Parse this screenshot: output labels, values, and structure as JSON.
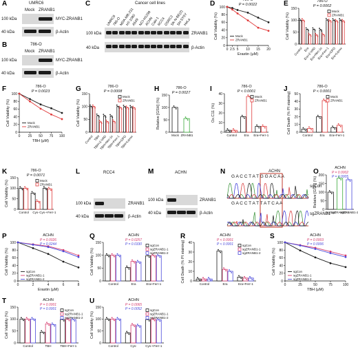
{
  "panels": [
    "A",
    "B",
    "C",
    "D",
    "E",
    "F",
    "G",
    "H",
    "I",
    "J",
    "K",
    "L",
    "M",
    "N",
    "O",
    "P",
    "Q",
    "R",
    "S",
    "T",
    "U"
  ],
  "colors": {
    "mock": "#1a1a1a",
    "zranb1": "#e03a3a",
    "sgcon": "#1a1a1a",
    "sg1": "#d63b6d",
    "sg2": "#4a4adb",
    "green": "#3aaa3a",
    "pink": "#e04d9f",
    "yellow": "#e2e23a"
  },
  "blots": {
    "A": {
      "title": "UMRC6",
      "lanes": [
        "Mock",
        "ZRANB1"
      ],
      "kda_top": "100 kDa",
      "kda_bot": "40 kDa",
      "label_top": "MYC-ZRANB1",
      "label_bot": "β-Actin"
    },
    "B": {
      "title": "786-O",
      "lanes": [
        "Mock",
        "ZRANB1"
      ],
      "kda_top": "100 kDa",
      "kda_bot": "40 kDa",
      "label_top": "MYC-ZRANB1",
      "label_bot": "β-Actin"
    },
    "C": {
      "title": "Cancer cell lines",
      "lanes": [
        "UMRC6",
        "786-O",
        "MDA-MB-231",
        "HT-1080",
        "A549",
        "NCI-H1299",
        "ACHN",
        "Caki-1",
        "RCC4",
        "OSRC2",
        "SK-N-BE(2)",
        "SH-SY5Y",
        "HeLa"
      ],
      "kda_top": "100 kDa",
      "kda_bot": "40 kDa",
      "label_top": "ZRANB1",
      "label_bot": "β-Actin"
    },
    "L": {
      "title": "RCC4",
      "lanes": [
        "sgCon",
        "sgZRANB1-1",
        "sgZRANB1-2"
      ],
      "kda_top": "100 kDa",
      "kda_bot": "40 kDa",
      "label_top": "ZRANB1",
      "label_bot": "β-Actin"
    },
    "M": {
      "title": "ACHN",
      "lanes": [
        "sgCon",
        "sgZRANB1-1",
        "sgZRANB1-2"
      ],
      "kda_top": "100 kDa",
      "kda_bot": "40 kDa",
      "label_top": "ZRANB1",
      "label_bot": "β-Actin"
    }
  },
  "N": {
    "title": "ACHN",
    "seq_top": "G A C C T A T G G A C A A",
    "seq_bot": "G A C C T A T T A T C A A",
    "label_top": "sgCon",
    "label_bot": "sgZRANB1"
  },
  "chart_data": [
    {
      "panel": "D",
      "type": "line",
      "title": "786-O",
      "pvalue": "P = 0.0022",
      "xlabel": "Erastin (μM)",
      "ylabel": "Cell Viability (%)",
      "x": [
        0,
        2.5,
        5,
        10,
        15,
        20
      ],
      "xticks": [
        "0",
        "2.5",
        "5",
        "10",
        "15",
        "20"
      ],
      "ylim": [
        0,
        100
      ],
      "yticks": [
        "0",
        "20",
        "40",
        "60",
        "80",
        "100"
      ],
      "series": [
        {
          "name": "Mock",
          "values": [
            100,
            97,
            92,
            85,
            72,
            60
          ]
        },
        {
          "name": "ZRANB1",
          "values": [
            100,
            93,
            83,
            65,
            46,
            38
          ]
        }
      ]
    },
    {
      "panel": "E",
      "type": "bar",
      "title": "786-O",
      "pvalue": "P = 0.0002",
      "ylabel": "Cell Viability (%)",
      "categories": [
        "Control",
        "Era",
        "Era+Z-VAD",
        "Era+Nec-1s",
        "Era+Ferr-1",
        "Era+DFO",
        "Era+Liprox"
      ],
      "ylim": [
        0,
        150
      ],
      "yticks": [
        "0",
        "50",
        "100",
        "150"
      ],
      "series": [
        {
          "name": "Mock",
          "values": [
            100,
            62,
            62,
            60,
            101,
            100,
            100
          ]
        },
        {
          "name": "ZRANB1",
          "values": [
            100,
            39,
            38,
            40,
            98,
            97,
            97
          ]
        }
      ]
    },
    {
      "panel": "F",
      "type": "line",
      "title": "786-O",
      "pvalue": "P = 0.0023",
      "xlabel": "TBH (μM)",
      "ylabel": "Cell Viability (%)",
      "x": [
        0,
        25,
        50,
        75,
        100
      ],
      "xticks": [
        "0",
        "25",
        "50",
        "75",
        "100"
      ],
      "ylim": [
        0,
        100
      ],
      "yticks": [
        "0",
        "20",
        "40",
        "60",
        "80",
        "100"
      ],
      "series": [
        {
          "name": "Mock",
          "values": [
            100,
            86,
            72,
            62,
            50
          ]
        },
        {
          "name": "ZRANB1",
          "values": [
            100,
            80,
            61,
            46,
            34
          ]
        }
      ]
    },
    {
      "panel": "G",
      "type": "bar",
      "title": "786-O",
      "pvalue": "P = 0.0008",
      "ylabel": "Cell Viability (%)",
      "categories": [
        "Control",
        "TBH",
        "TBH+Z-VAD",
        "TBH+Nec-1s",
        "TBH+Ferr-1",
        "TBH+DFO",
        "TBH+Liprox"
      ],
      "ylim": [
        0,
        150
      ],
      "yticks": [
        "0",
        "50",
        "100",
        "150"
      ],
      "series": [
        {
          "name": "Mock",
          "values": [
            100,
            65,
            64,
            63,
            100,
            99,
            98
          ]
        },
        {
          "name": "ZRANB1",
          "values": [
            100,
            40,
            41,
            42,
            95,
            96,
            95
          ]
        }
      ]
    },
    {
      "panel": "H",
      "type": "bar",
      "title": "786-O",
      "pvalue": "P = 0.0027",
      "ylabel": "Relative [GSH] (%)",
      "categories": [
        "Mock",
        "ZRANB1"
      ],
      "ylim": [
        0,
        150
      ],
      "yticks": [
        "0",
        "50",
        "100",
        "150"
      ],
      "values": [
        100,
        55
      ]
    },
    {
      "panel": "I",
      "type": "bar",
      "title": "786-O",
      "pvalue": "P < 0.0001",
      "ylabel": "Ox.C11 (%)",
      "categories": [
        "Control",
        "Era",
        "Era+Ferr-1"
      ],
      "ylim": [
        0,
        40
      ],
      "yticks": [
        "0",
        "10",
        "20",
        "30",
        "40"
      ],
      "series": [
        {
          "name": "Mock",
          "values": [
            2,
            16,
            6
          ]
        },
        {
          "name": "ZRANB1",
          "values": [
            2,
            37,
            6
          ]
        }
      ]
    },
    {
      "panel": "J",
      "type": "bar",
      "title": "786-O",
      "pvalue": "P < 0.0001",
      "ylabel": "Cell Death (% PI staining)",
      "categories": [
        "Control",
        "Era",
        "Era+Ferr-1"
      ],
      "ylim": [
        0,
        50
      ],
      "yticks": [
        "0",
        "10",
        "20",
        "30",
        "40",
        "50"
      ],
      "series": [
        {
          "name": "Mock",
          "values": [
            4,
            20,
            6
          ]
        },
        {
          "name": "ZRANB1",
          "values": [
            5,
            41,
            9
          ]
        }
      ]
    },
    {
      "panel": "K",
      "type": "bar",
      "title": "786-O",
      "pvalue": "P = 0.0071",
      "ylabel": "Cell Viability (%)",
      "categories": [
        "Control",
        "Cys-",
        "Cys-+Ferr-1"
      ],
      "ylim": [
        0,
        150
      ],
      "yticks": [
        "0",
        "50",
        "100",
        "150"
      ],
      "series": [
        {
          "name": "Mock",
          "values": [
            100,
            77,
            100
          ]
        },
        {
          "name": "ZRANB1",
          "values": [
            100,
            38,
            97
          ]
        }
      ]
    },
    {
      "panel": "O",
      "type": "bar",
      "title": "ACHN",
      "pvalues": [
        "P = 0.0002",
        "P = 0.0005"
      ],
      "ylabel": "Relative [GSH] (%)",
      "categories": [
        "sgCon",
        "sgZRANB1-1",
        "sgZRANB1-2"
      ],
      "ylim": [
        0,
        200
      ],
      "yticks": [
        "0",
        "50",
        "100",
        "150",
        "200"
      ],
      "values": [
        100,
        180,
        172
      ]
    },
    {
      "panel": "P",
      "type": "line",
      "title": "ACHN",
      "pvalues": [
        "P = 0.0026",
        "P = 0.0244"
      ],
      "xlabel": "Erastin (μM)",
      "ylabel": "Cell Viability (%)",
      "x": [
        0,
        2,
        4,
        6,
        8
      ],
      "xticks": [
        "0",
        "2",
        "4",
        "6",
        "8"
      ],
      "ylim": [
        0,
        100
      ],
      "yticks": [
        "0",
        "20",
        "40",
        "60",
        "80",
        "100"
      ],
      "series": [
        {
          "name": "sgCon",
          "values": [
            100,
            85,
            70,
            50,
            35
          ]
        },
        {
          "name": "sgZRANB1-1",
          "values": [
            100,
            95,
            90,
            80,
            66
          ]
        },
        {
          "name": "sgZRANB1-2",
          "values": [
            100,
            94,
            88,
            77,
            62
          ]
        }
      ]
    },
    {
      "panel": "Q",
      "type": "bar",
      "title": "ACHN",
      "pvalues": [
        "P = 0.0257",
        "P = 0.0330"
      ],
      "ylabel": "Cell Viability (%)",
      "categories": [
        "Control",
        "Era",
        "Era+Ferr-1"
      ],
      "ylim": [
        0,
        150
      ],
      "yticks": [
        "0",
        "50",
        "100",
        "150"
      ],
      "series": [
        {
          "name": "sgCon",
          "values": [
            100,
            52,
            98
          ]
        },
        {
          "name": "sgZRANB1-1",
          "values": [
            100,
            76,
            99
          ]
        },
        {
          "name": "sgZRANB1-2",
          "values": [
            100,
            74,
            98
          ]
        }
      ]
    },
    {
      "panel": "R",
      "type": "bar",
      "title": "ACHN",
      "pvalues": [
        "P < 0.0001",
        "P < 0.0001"
      ],
      "ylabel": "Cell Death (% PI staining)",
      "categories": [
        "Control",
        "Era",
        "Era+Ferr-1"
      ],
      "ylim": [
        0,
        40
      ],
      "yticks": [
        "0",
        "10",
        "20",
        "30",
        "40"
      ],
      "series": [
        {
          "name": "sgCon",
          "values": [
            2,
            31,
            4
          ]
        },
        {
          "name": "sgZRANB1-1",
          "values": [
            2,
            12,
            3
          ]
        },
        {
          "name": "sgZRANB1-2",
          "values": [
            2,
            10,
            3
          ]
        }
      ]
    },
    {
      "panel": "S",
      "type": "line",
      "title": "ACHN",
      "pvalues": [
        "P = 0.0003",
        "P = 0.0006"
      ],
      "xlabel": "TBH (μM)",
      "ylabel": "Cell Viability (%)",
      "x": [
        0,
        25,
        50,
        75,
        100
      ],
      "xticks": [
        "0",
        "25",
        "50",
        "75",
        "100"
      ],
      "ylim": [
        0,
        100
      ],
      "yticks": [
        "0",
        "20",
        "40",
        "60",
        "80",
        "100"
      ],
      "series": [
        {
          "name": "sgCon",
          "values": [
            100,
            79,
            61,
            46,
            36
          ]
        },
        {
          "name": "sgZRANB1-1",
          "values": [
            100,
            93,
            86,
            76,
            66
          ]
        },
        {
          "name": "sgZRANB1-2",
          "values": [
            100,
            92,
            83,
            72,
            62
          ]
        }
      ]
    },
    {
      "panel": "T",
      "type": "bar",
      "title": "ACHN",
      "pvalues": [
        "P = 0.0001",
        "P = 0.0001"
      ],
      "ylabel": "Cell Viability (%)",
      "categories": [
        "Control",
        "TBH",
        "TBH+Ferr-1"
      ],
      "ylim": [
        0,
        150
      ],
      "yticks": [
        "0",
        "50",
        "100",
        "150"
      ],
      "series": [
        {
          "name": "sgCon",
          "values": [
            100,
            45,
            98
          ]
        },
        {
          "name": "sgZRANB1-1",
          "values": [
            100,
            80,
            99
          ]
        },
        {
          "name": "sgZRANB1-2",
          "values": [
            100,
            77,
            98
          ]
        }
      ]
    },
    {
      "panel": "U",
      "type": "bar",
      "title": "ACHN",
      "pvalues": [
        "P = 0.0065",
        "P = 0.0052"
      ],
      "ylabel": "Cell Viability (%)",
      "categories": [
        "Control",
        "Cys-",
        "Cys-+Ferr-1"
      ],
      "ylim": [
        0,
        150
      ],
      "yticks": [
        "0",
        "50",
        "100",
        "150"
      ],
      "series": [
        {
          "name": "sgCon",
          "values": [
            100,
            42,
            98
          ]
        },
        {
          "name": "sgZRANB1-1",
          "values": [
            100,
            75,
            99
          ]
        },
        {
          "name": "sgZRANB1-2",
          "values": [
            100,
            72,
            97
          ]
        }
      ]
    }
  ]
}
